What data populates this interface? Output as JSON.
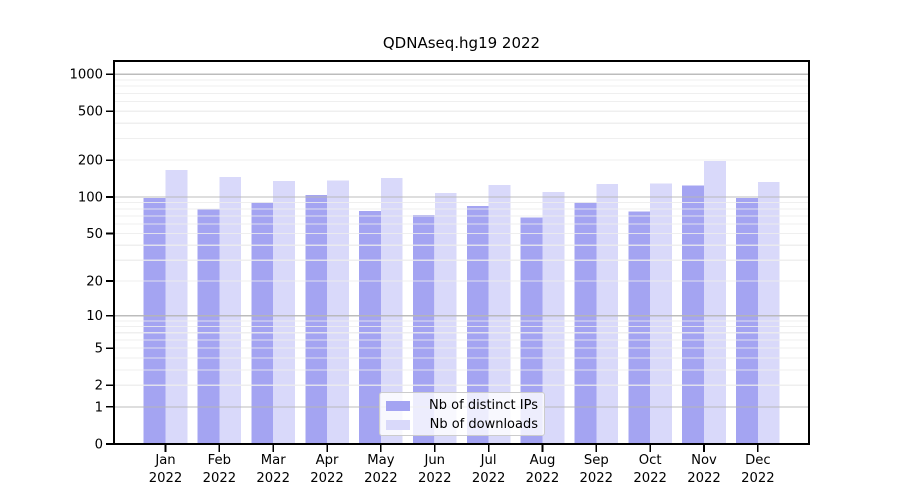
{
  "chart_data": {
    "type": "bar",
    "title": "QDNAseq.hg19 2022",
    "scale": "log1p",
    "grid": true,
    "legend_position": "lower center",
    "categories": [
      "Jan",
      "Feb",
      "Mar",
      "Apr",
      "May",
      "Jun",
      "Jul",
      "Aug",
      "Sep",
      "Oct",
      "Nov",
      "Dec"
    ],
    "category_year": "2022",
    "series": [
      {
        "name": "Nb of distinct IPs",
        "color": "#a4a4f2",
        "values": [
          98,
          79,
          90,
          104,
          77,
          71,
          84,
          68,
          90,
          76,
          124,
          98
        ]
      },
      {
        "name": "Nb of downloads",
        "color": "#d9d9fa",
        "values": [
          166,
          146,
          135,
          136,
          143,
          108,
          125,
          110,
          128,
          129,
          197,
          132
        ]
      }
    ],
    "y_ticks": [
      0,
      1,
      2,
      5,
      10,
      20,
      50,
      100,
      200,
      500,
      1000
    ],
    "ylim": [
      0,
      1280
    ],
    "xlabel": "",
    "ylabel": "",
    "colors": {
      "major_grid": "#b5b5b5",
      "minor_grid": "#ececec",
      "axis": "#000000",
      "legend_border": "#cccccc"
    }
  }
}
